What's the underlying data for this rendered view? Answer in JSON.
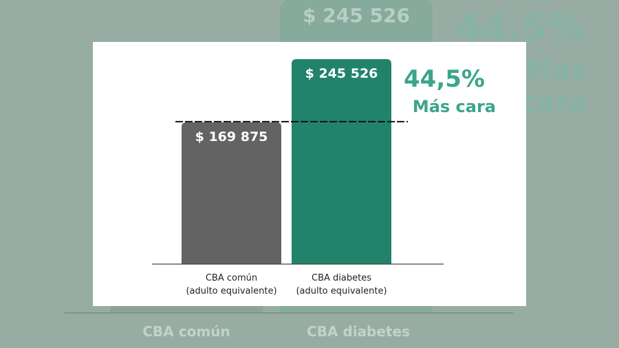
{
  "chart_data": {
    "type": "bar",
    "categories": [
      [
        "CBA común",
        "(adulto equivalente)"
      ],
      [
        "CBA diabetes",
        "(adulto equivalente)"
      ]
    ],
    "values": [
      169875,
      245526
    ],
    "value_labels": [
      "$ 169 875",
      "$ 245 526"
    ],
    "colors": [
      "#636363",
      "#21836c"
    ],
    "ylim": [
      0,
      245526
    ],
    "reference_line": {
      "value": 169875,
      "style": "dashed"
    },
    "annotation": {
      "percent": "44,5%",
      "text": "Más cara",
      "color": "#3aa58a"
    },
    "title": "",
    "xlabel": "",
    "ylabel": "",
    "grid": false
  }
}
